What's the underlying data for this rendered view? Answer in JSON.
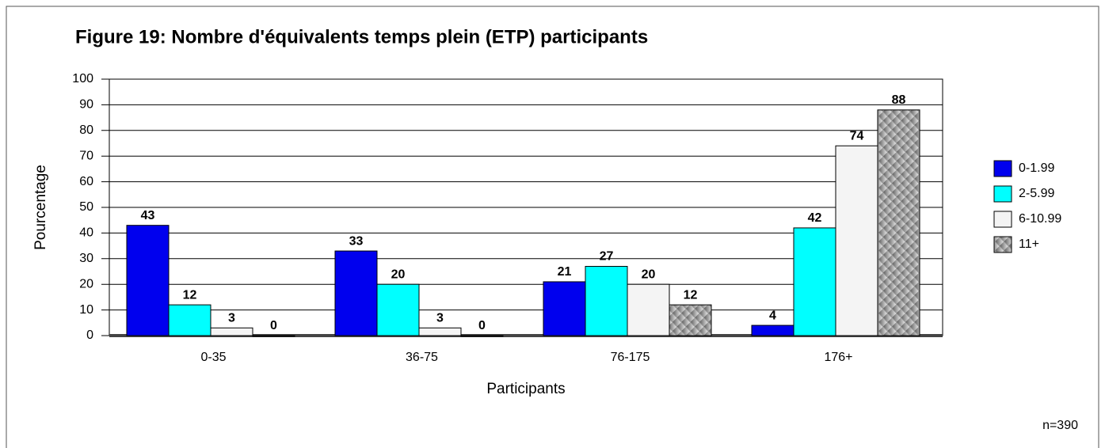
{
  "chart_data": {
    "type": "bar",
    "title": "Figure 19: Nombre d'équivalents temps plein (ETP) participants",
    "x_label": "Participants",
    "y_label": "Pourcentage",
    "note": "n=390",
    "categories": [
      "0-35",
      "36-75",
      "76-175",
      "176+"
    ],
    "series": [
      {
        "name": "0-1.99",
        "color": "#0000ee",
        "values": [
          43,
          33,
          21,
          4
        ]
      },
      {
        "name": "2-5.99",
        "color": "#00ffff",
        "values": [
          12,
          20,
          27,
          42
        ]
      },
      {
        "name": "6-10.99",
        "color": "#f4f4f4",
        "values": [
          3,
          3,
          20,
          74
        ]
      },
      {
        "name": "11+",
        "color": "#777777",
        "values": [
          0,
          0,
          12,
          88
        ]
      }
    ],
    "ylim": [
      0,
      100
    ],
    "yticks": [
      0,
      10,
      20,
      30,
      40,
      50,
      60,
      70,
      80,
      90,
      100
    ],
    "grid": true,
    "legend": "right"
  }
}
